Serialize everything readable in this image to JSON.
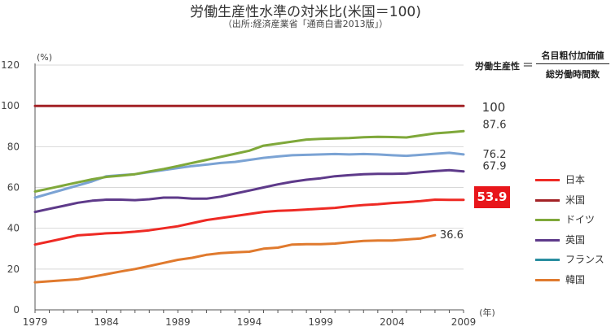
{
  "title": "労働生産性水準の対米比(米国＝100)",
  "subtitle": "（出所:経済産業省「通商白書2013版」）",
  "definition": {
    "lhs": "労働生産性",
    "eq": "＝",
    "numerator": "名目粗付加価値",
    "denominator": "総労働時間数"
  },
  "colors": {
    "japan": "#ee2a24",
    "us": "#a32226",
    "germany": "#7fa83a",
    "uk": "#5e3a8a",
    "france": "#2a8ea0",
    "korea": "#e07a2e",
    "france_line": "#7ba3d4",
    "grid": "#d8d8d8",
    "axis": "#555555"
  },
  "chart_data": {
    "type": "line",
    "title": "労働生産性水準の対米比(米国＝100)",
    "ylabel": "(%)",
    "xlabel": "(年)",
    "ylim": [
      0,
      120
    ],
    "yticks": [
      0,
      20,
      40,
      60,
      80,
      100,
      120
    ],
    "xlim": [
      1979,
      2009
    ],
    "xticks": [
      1979,
      1984,
      1989,
      1994,
      1999,
      2004,
      2009
    ],
    "grid": true,
    "legend_position": "right",
    "x": [
      1979,
      1980,
      1981,
      1982,
      1983,
      1984,
      1985,
      1986,
      1987,
      1988,
      1989,
      1990,
      1991,
      1992,
      1993,
      1994,
      1995,
      1996,
      1997,
      1998,
      1999,
      2000,
      2001,
      2002,
      2003,
      2004,
      2005,
      2006,
      2007,
      2008,
      2009
    ],
    "series": [
      {
        "name": "日本",
        "key": "japan",
        "values": [
          32,
          33.5,
          35,
          36.5,
          37,
          37.5,
          37.8,
          38.3,
          39,
          40,
          41,
          42.5,
          44,
          45,
          46,
          47,
          48,
          48.5,
          48.8,
          49.2,
          49.6,
          50,
          50.8,
          51.4,
          51.8,
          52.4,
          52.8,
          53.3,
          54,
          53.9,
          53.9
        ],
        "end_label": "53.9"
      },
      {
        "name": "米国",
        "key": "us",
        "values": [
          100,
          100,
          100,
          100,
          100,
          100,
          100,
          100,
          100,
          100,
          100,
          100,
          100,
          100,
          100,
          100,
          100,
          100,
          100,
          100,
          100,
          100,
          100,
          100,
          100,
          100,
          100,
          100,
          100,
          100,
          100
        ],
        "end_label": "100"
      },
      {
        "name": "ドイツ",
        "key": "germany",
        "values": [
          58,
          59.5,
          61,
          62.5,
          64,
          65.2,
          65.8,
          66.5,
          67.8,
          69,
          70.5,
          72,
          73.5,
          75,
          76.5,
          78,
          80.5,
          81.5,
          82.5,
          83.5,
          83.8,
          84,
          84.2,
          84.6,
          84.8,
          84.7,
          84.5,
          85.5,
          86.5,
          87,
          87.6
        ],
        "end_label": "87.6"
      },
      {
        "name": "英国",
        "key": "uk",
        "values": [
          48,
          49.5,
          51,
          52.5,
          53.5,
          54,
          54,
          53.8,
          54.2,
          55,
          55,
          54.5,
          54.5,
          55.5,
          57,
          58.5,
          60,
          61.5,
          62.8,
          63.8,
          64.5,
          65.5,
          66,
          66.5,
          66.7,
          66.7,
          66.8,
          67.5,
          68,
          68.5,
          67.9
        ],
        "end_label": "67.9"
      },
      {
        "name": "フランス",
        "key": "france",
        "values": [
          55,
          57,
          59,
          61,
          63,
          65.5,
          66,
          66.5,
          67.5,
          68.5,
          69.5,
          70.5,
          71.2,
          72,
          72.5,
          73.5,
          74.5,
          75.2,
          75.8,
          76,
          76.2,
          76.4,
          76.2,
          76.4,
          76.2,
          75.8,
          75.5,
          76,
          76.5,
          77,
          76.2
        ],
        "end_label": "76.2"
      },
      {
        "name": "韓国",
        "key": "korea",
        "values": [
          13.5,
          14,
          14.5,
          15,
          16.2,
          17.5,
          18.8,
          20,
          21.5,
          23,
          24.5,
          25.5,
          27,
          27.8,
          28.2,
          28.5,
          30,
          30.5,
          32,
          32.2,
          32.2,
          32.5,
          33.2,
          33.8,
          34,
          34,
          34.5,
          35,
          36.6,
          null,
          null
        ],
        "end_label": "36.6"
      }
    ],
    "legend": [
      "日本",
      "米国",
      "ドイツ",
      "英国",
      "フランス",
      "韓国"
    ]
  }
}
